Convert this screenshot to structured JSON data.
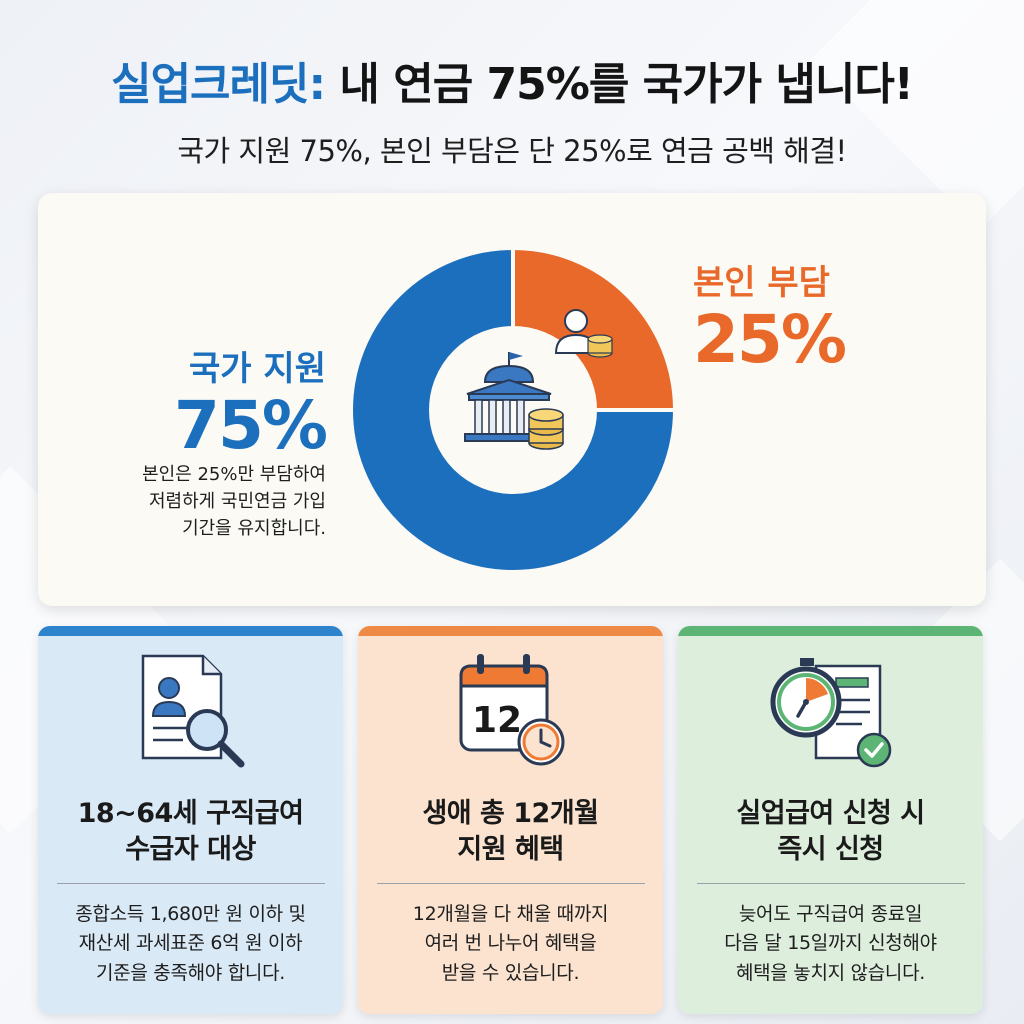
{
  "header": {
    "title_highlight": "실업크레딧:",
    "title_rest": "내 연금 75%를 국가가 냅니다!",
    "subtitle": "국가 지원 75%, 본인 부담은 단 25%로 연금 공백 해결!"
  },
  "chart_data": {
    "type": "pie",
    "categories": [
      "국가 지원",
      "본인 부담"
    ],
    "values": [
      75,
      25
    ],
    "colors": [
      "#1c6fbd",
      "#e8692a"
    ],
    "donut": true
  },
  "main": {
    "state": {
      "label": "국가 지원",
      "percent": "75%"
    },
    "self": {
      "label": "본인 부담",
      "percent": "25%"
    },
    "description": [
      "본인은 25%만 부담하여",
      "저렴하게 국민연금 가입",
      "기간을 유지합니다."
    ]
  },
  "cards": [
    {
      "icon": "document-search-icon",
      "title": [
        "18~64세 구직급여",
        "수급자 대상"
      ],
      "desc": [
        "종합소득 1,680만 원 이하 및",
        "재산세 과세표준 6억 원 이하",
        "기준을 충족해야 합니다."
      ]
    },
    {
      "icon": "calendar-clock-icon",
      "calendar_number": "12",
      "title": [
        "생애 총 12개월",
        "지원 혜택"
      ],
      "desc": [
        "12개월을 다 채울 때까지",
        "여러 번 나누어 혜택을",
        "받을 수 있습니다."
      ]
    },
    {
      "icon": "stopwatch-document-icon",
      "title": [
        "실업급여 신청 시",
        "즉시 신청"
      ],
      "desc": [
        "늦어도 구직급여 종료일",
        "다음 달 15일까지 신청해야",
        "혜택을 놓치지 않습니다."
      ]
    }
  ]
}
